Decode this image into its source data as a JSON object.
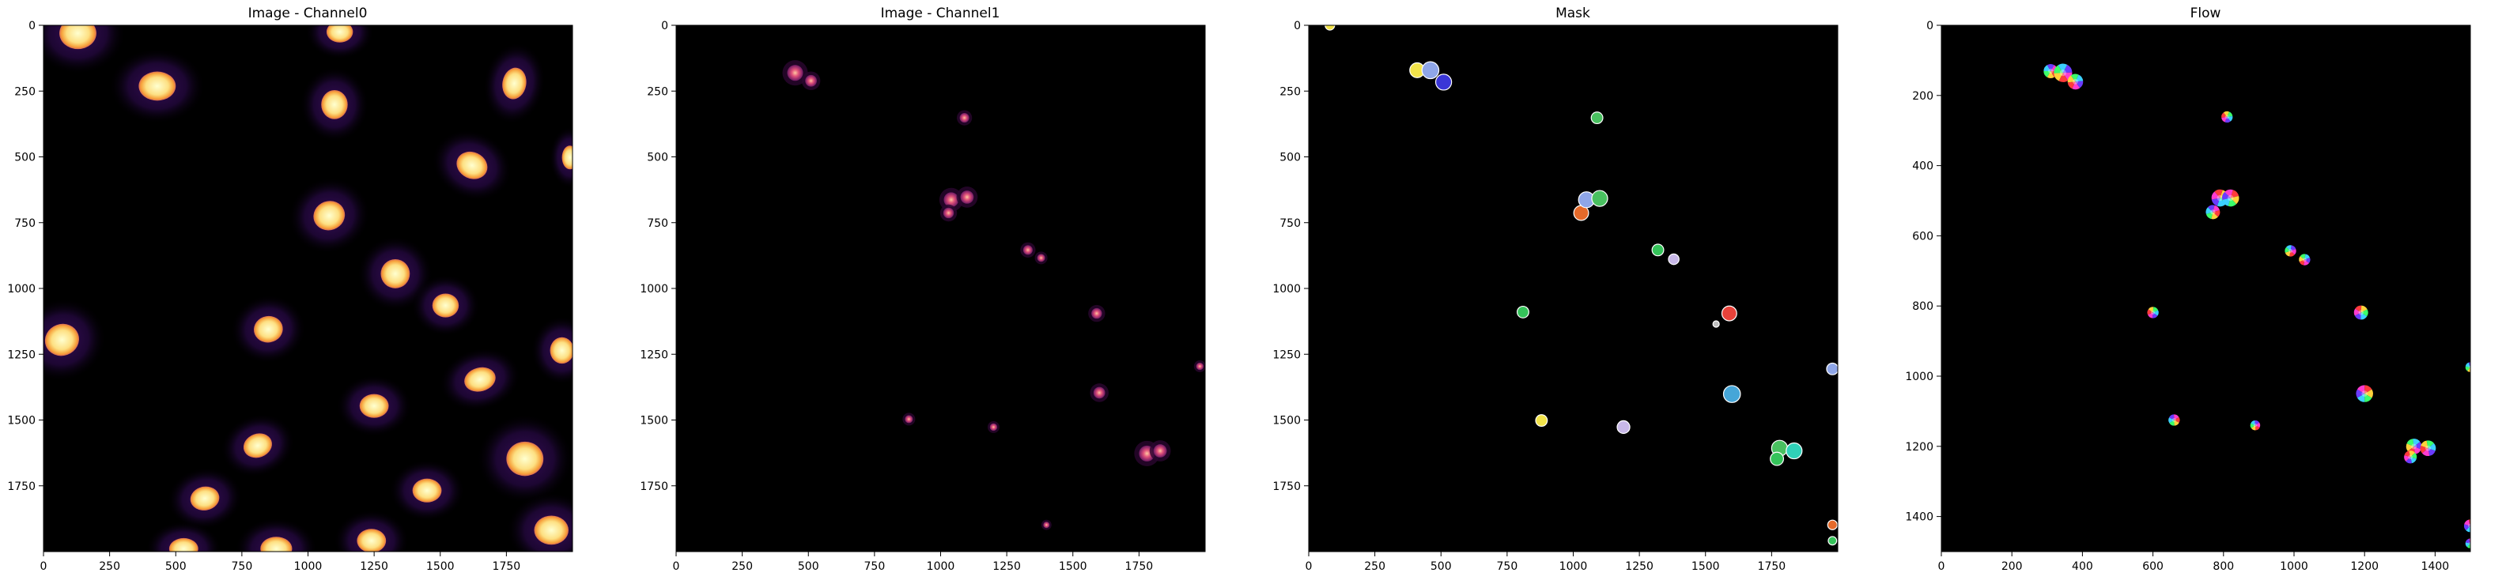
{
  "figure": {
    "panels": [
      {
        "title": "Image - Channel0",
        "x_ticks": [
          "0",
          "250",
          "500",
          "750",
          "1000",
          "1250",
          "1500",
          "1750"
        ],
        "y_ticks": [
          "0",
          "250",
          "500",
          "750",
          "1000",
          "1250",
          "1500",
          "1750"
        ],
        "x_range": [
          0,
          2000
        ],
        "y_range": [
          0,
          2000
        ]
      },
      {
        "title": "Image - Channel1",
        "x_ticks": [
          "0",
          "250",
          "500",
          "750",
          "1000",
          "1250",
          "1500",
          "1750"
        ],
        "y_ticks": [
          "0",
          "250",
          "500",
          "750",
          "1000",
          "1250",
          "1500",
          "1750"
        ],
        "x_range": [
          0,
          2000
        ],
        "y_range": [
          0,
          2000
        ]
      },
      {
        "title": "Mask",
        "x_ticks": [
          "0",
          "250",
          "500",
          "750",
          "1000",
          "1250",
          "1500",
          "1750"
        ],
        "y_ticks": [
          "0",
          "250",
          "500",
          "750",
          "1000",
          "1250",
          "1500",
          "1750"
        ],
        "x_range": [
          0,
          2000
        ],
        "y_range": [
          0,
          2000
        ]
      },
      {
        "title": "Flow",
        "x_ticks": [
          "0",
          "200",
          "400",
          "600",
          "800",
          "1000",
          "1200",
          "1400"
        ],
        "y_ticks": [
          "0",
          "200",
          "400",
          "600",
          "800",
          "1000",
          "1200",
          "1400"
        ],
        "x_range": [
          0,
          1500
        ],
        "y_range": [
          0,
          1500
        ]
      }
    ]
  },
  "colors": {
    "background": "#ffffff",
    "axes_bg": "#000000",
    "nucleus_bright": "#ffffbe",
    "nucleus_mid": "#f9a43a",
    "nucleus_dark": "#c43d6a",
    "cytoplasm": "#2a0a4a",
    "channel1_spot": "#b8337a",
    "mask_palette": [
      "#f2e34a",
      "#8fa6e8",
      "#3a36d6",
      "#49c060",
      "#e56a2a",
      "#c8b8e8",
      "#e8423a",
      "#46a6d8",
      "#35c35a",
      "#30d0b8",
      "#c0c0c0"
    ],
    "flow_palette": [
      "#ff3b3b",
      "#ffd23b",
      "#3bff6a",
      "#3bd0ff",
      "#6a3bff",
      "#ff3bd0"
    ]
  },
  "chart_data": [
    {
      "type": "heatmap",
      "title": "Image - Channel0",
      "colormap": "inferno",
      "xlabel": "",
      "ylabel": "",
      "xlim": [
        0,
        2000
      ],
      "ylim": [
        2000,
        0
      ],
      "nuclei": [
        {
          "x": 130,
          "y": 30,
          "rx": 70,
          "ry": 60,
          "angle": 0
        },
        {
          "x": 430,
          "y": 230,
          "rx": 70,
          "ry": 55,
          "angle": 0
        },
        {
          "x": 1120,
          "y": 25,
          "rx": 50,
          "ry": 40,
          "angle": 0
        },
        {
          "x": 1100,
          "y": 300,
          "rx": 50,
          "ry": 55,
          "angle": 0
        },
        {
          "x": 1780,
          "y": 220,
          "rx": 45,
          "ry": 60,
          "angle": 10
        },
        {
          "x": 1620,
          "y": 530,
          "rx": 60,
          "ry": 50,
          "angle": 25
        },
        {
          "x": 1990,
          "y": 500,
          "rx": 30,
          "ry": 45,
          "angle": 0
        },
        {
          "x": 1080,
          "y": 720,
          "rx": 60,
          "ry": 55,
          "angle": -20
        },
        {
          "x": 1330,
          "y": 940,
          "rx": 55,
          "ry": 55,
          "angle": 0
        },
        {
          "x": 1520,
          "y": 1060,
          "rx": 50,
          "ry": 45,
          "angle": 0
        },
        {
          "x": 70,
          "y": 1190,
          "rx": 65,
          "ry": 60,
          "angle": -20
        },
        {
          "x": 850,
          "y": 1150,
          "rx": 55,
          "ry": 50,
          "angle": -10
        },
        {
          "x": 1960,
          "y": 1230,
          "rx": 45,
          "ry": 50,
          "angle": 0
        },
        {
          "x": 1650,
          "y": 1340,
          "rx": 60,
          "ry": 45,
          "angle": -15
        },
        {
          "x": 1250,
          "y": 1440,
          "rx": 55,
          "ry": 45,
          "angle": 0
        },
        {
          "x": 810,
          "y": 1590,
          "rx": 55,
          "ry": 45,
          "angle": -20
        },
        {
          "x": 1820,
          "y": 1640,
          "rx": 70,
          "ry": 65,
          "angle": 0
        },
        {
          "x": 1450,
          "y": 1760,
          "rx": 55,
          "ry": 45,
          "angle": 0
        },
        {
          "x": 610,
          "y": 1790,
          "rx": 55,
          "ry": 45,
          "angle": -10
        },
        {
          "x": 1920,
          "y": 1910,
          "rx": 65,
          "ry": 55,
          "angle": 0
        },
        {
          "x": 1240,
          "y": 1950,
          "rx": 55,
          "ry": 45,
          "angle": 0
        },
        {
          "x": 880,
          "y": 1980,
          "rx": 60,
          "ry": 45,
          "angle": 0
        },
        {
          "x": 530,
          "y": 1980,
          "rx": 55,
          "ry": 40,
          "angle": 0
        }
      ]
    },
    {
      "type": "heatmap",
      "title": "Image - Channel1",
      "colormap": "magma",
      "xlabel": "",
      "ylabel": "",
      "xlim": [
        0,
        2000
      ],
      "ylim": [
        2000,
        0
      ],
      "spots": [
        {
          "x": 450,
          "y": 180,
          "r": 30
        },
        {
          "x": 510,
          "y": 210,
          "r": 22
        },
        {
          "x": 1090,
          "y": 350,
          "r": 18
        },
        {
          "x": 1040,
          "y": 660,
          "r": 28
        },
        {
          "x": 1100,
          "y": 650,
          "r": 25
        },
        {
          "x": 1030,
          "y": 710,
          "r": 20
        },
        {
          "x": 1330,
          "y": 850,
          "r": 18
        },
        {
          "x": 1380,
          "y": 880,
          "r": 15
        },
        {
          "x": 1590,
          "y": 1090,
          "r": 20
        },
        {
          "x": 1600,
          "y": 1390,
          "r": 22
        },
        {
          "x": 1780,
          "y": 1620,
          "r": 30
        },
        {
          "x": 1830,
          "y": 1610,
          "r": 25
        },
        {
          "x": 880,
          "y": 1490,
          "r": 15
        },
        {
          "x": 1200,
          "y": 1520,
          "r": 14
        },
        {
          "x": 1400,
          "y": 1890,
          "r": 12
        },
        {
          "x": 1980,
          "y": 1290,
          "r": 14
        }
      ]
    },
    {
      "type": "heatmap",
      "title": "Mask",
      "colormap": "labels",
      "xlabel": "",
      "ylabel": "",
      "xlim": [
        0,
        2000
      ],
      "ylim": [
        2000,
        0
      ],
      "objects": [
        {
          "x": 410,
          "y": 170,
          "r": 28,
          "c": 0
        },
        {
          "x": 460,
          "y": 170,
          "r": 32,
          "c": 1
        },
        {
          "x": 510,
          "y": 215,
          "r": 30,
          "c": 2
        },
        {
          "x": 1090,
          "y": 350,
          "r": 22,
          "c": 3
        },
        {
          "x": 1030,
          "y": 710,
          "r": 28,
          "c": 4
        },
        {
          "x": 1050,
          "y": 660,
          "r": 30,
          "c": 1
        },
        {
          "x": 1100,
          "y": 655,
          "r": 30,
          "c": 3
        },
        {
          "x": 1320,
          "y": 850,
          "r": 22,
          "c": 8
        },
        {
          "x": 1380,
          "y": 885,
          "r": 20,
          "c": 5
        },
        {
          "x": 1590,
          "y": 1090,
          "r": 28,
          "c": 6
        },
        {
          "x": 1540,
          "y": 1130,
          "r": 12,
          "c": 10
        },
        {
          "x": 810,
          "y": 1085,
          "r": 22,
          "c": 8
        },
        {
          "x": 1600,
          "y": 1395,
          "r": 32,
          "c": 7
        },
        {
          "x": 880,
          "y": 1495,
          "r": 22,
          "c": 0
        },
        {
          "x": 1190,
          "y": 1520,
          "r": 24,
          "c": 5
        },
        {
          "x": 1780,
          "y": 1600,
          "r": 30,
          "c": 3
        },
        {
          "x": 1770,
          "y": 1640,
          "r": 25,
          "c": 8
        },
        {
          "x": 1835,
          "y": 1610,
          "r": 30,
          "c": 9
        },
        {
          "x": 1980,
          "y": 1300,
          "r": 22,
          "c": 1
        },
        {
          "x": 1980,
          "y": 1890,
          "r": 18,
          "c": 4
        },
        {
          "x": 1980,
          "y": 1950,
          "r": 16,
          "c": 8
        },
        {
          "x": 80,
          "y": 0,
          "r": 18,
          "c": 0
        }
      ]
    },
    {
      "type": "heatmap",
      "title": "Flow",
      "colormap": "hsv-flow",
      "xlabel": "",
      "ylabel": "",
      "xlim": [
        0,
        1500
      ],
      "ylim": [
        1500,
        0
      ],
      "objects": [
        {
          "x": 310,
          "y": 130,
          "r": 20
        },
        {
          "x": 345,
          "y": 135,
          "r": 26
        },
        {
          "x": 380,
          "y": 160,
          "r": 22
        },
        {
          "x": 810,
          "y": 260,
          "r": 16
        },
        {
          "x": 790,
          "y": 490,
          "r": 24
        },
        {
          "x": 820,
          "y": 490,
          "r": 24
        },
        {
          "x": 770,
          "y": 530,
          "r": 20
        },
        {
          "x": 990,
          "y": 640,
          "r": 16
        },
        {
          "x": 1030,
          "y": 665,
          "r": 16
        },
        {
          "x": 600,
          "y": 815,
          "r": 16
        },
        {
          "x": 1190,
          "y": 815,
          "r": 20
        },
        {
          "x": 1200,
          "y": 1045,
          "r": 24
        },
        {
          "x": 660,
          "y": 1120,
          "r": 16
        },
        {
          "x": 890,
          "y": 1135,
          "r": 14
        },
        {
          "x": 1340,
          "y": 1195,
          "r": 22
        },
        {
          "x": 1380,
          "y": 1200,
          "r": 22
        },
        {
          "x": 1330,
          "y": 1225,
          "r": 18
        },
        {
          "x": 1500,
          "y": 1420,
          "r": 18
        },
        {
          "x": 1500,
          "y": 1470,
          "r": 14
        },
        {
          "x": 1500,
          "y": 970,
          "r": 14
        }
      ]
    }
  ]
}
